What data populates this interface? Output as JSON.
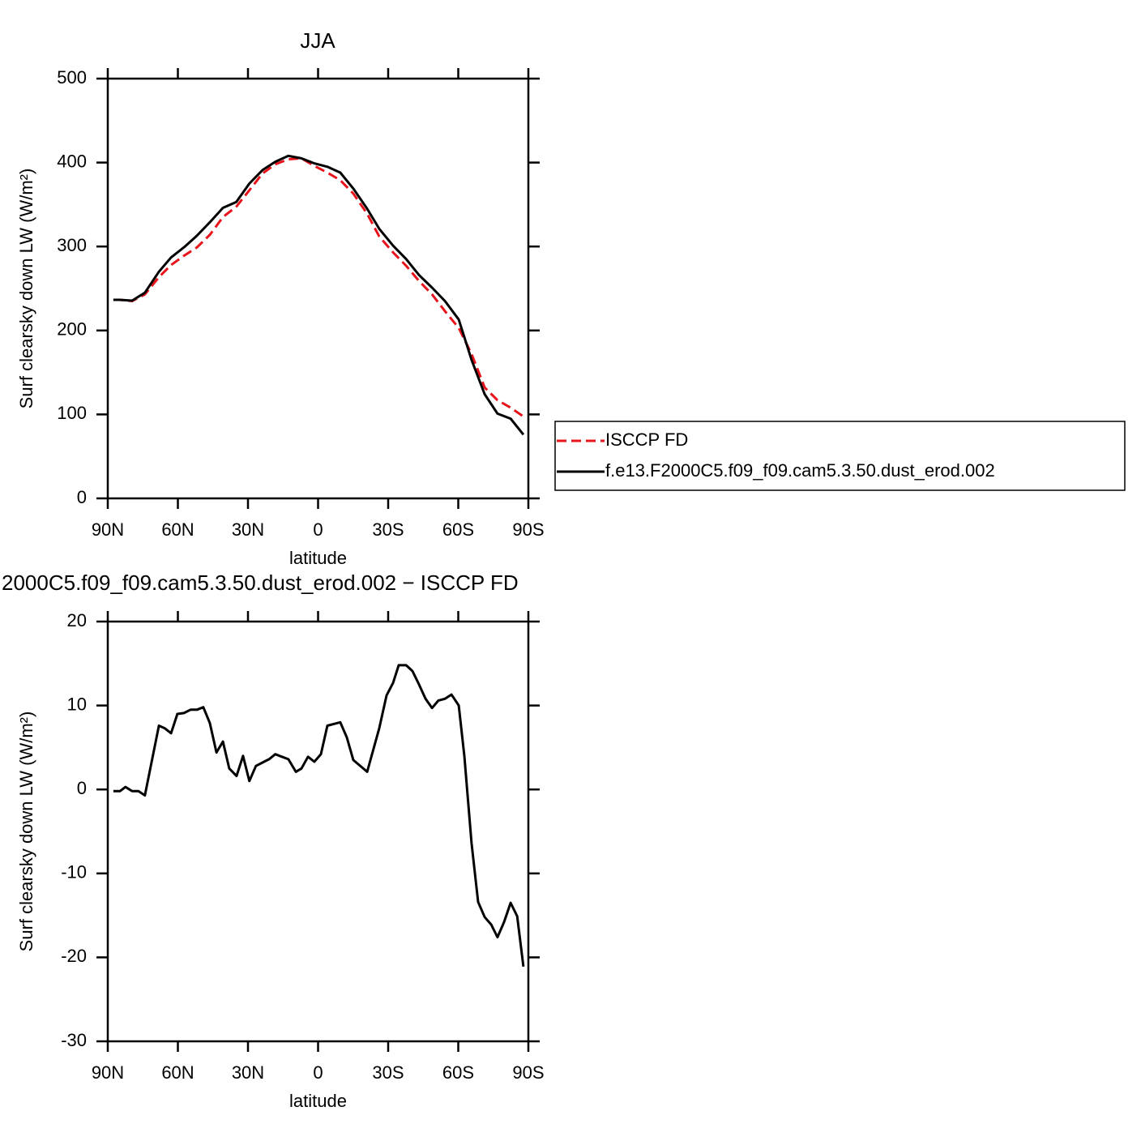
{
  "chart_data": [
    {
      "type": "line",
      "title": "JJA",
      "xlabel": "latitude",
      "ylabel": "Surf clearsky down LW (W/m²)",
      "x": [
        87.6,
        84.8,
        79.6,
        74.1,
        68.1,
        62.9,
        57.4,
        51.8,
        46.3,
        40.7,
        35.0,
        29.4,
        23.8,
        18.3,
        12.7,
        7.1,
        1.6,
        -4.0,
        -9.5,
        -15.1,
        -21.0,
        -26.2,
        -32.1,
        -37.7,
        -43.2,
        -48.8,
        -54.3,
        -60.2,
        -65.7,
        -71.3,
        -76.8,
        -82.4,
        -87.9
      ],
      "series": [
        {
          "name": "ISCCP FD",
          "color": "#e8141c",
          "dash": "dashed",
          "values": [
            236.5,
            236.5,
            235,
            243,
            263.5,
            278,
            289,
            299,
            314,
            335,
            347.5,
            367,
            387,
            398,
            404,
            405,
            396,
            388,
            379,
            363,
            339,
            312,
            293,
            277,
            259,
            243,
            223,
            203,
            172,
            132,
            117,
            108,
            97.5
          ]
        },
        {
          "name": "f.e13.F2000C5.f09_f09.cam5.3.50.dust_erod.002",
          "color": "#000000",
          "dash": "solid",
          "values": [
            236.5,
            236.5,
            235.5,
            245,
            270,
            287,
            299,
            313,
            329,
            346,
            353,
            375,
            391,
            401,
            408,
            405,
            399,
            395,
            388,
            369,
            345,
            321,
            301,
            285,
            266,
            251,
            235,
            213,
            165,
            124,
            101,
            95,
            76
          ]
        }
      ],
      "xlim": [
        90,
        -90
      ],
      "xticks": [
        {
          "value": 90,
          "label": "90N"
        },
        {
          "value": 60,
          "label": "60N"
        },
        {
          "value": 30,
          "label": "30N"
        },
        0,
        {
          "value": -30,
          "label": "30S"
        },
        {
          "value": -60,
          "label": "60S"
        },
        {
          "value": -90,
          "label": "90S"
        }
      ],
      "ylim": [
        0,
        500
      ],
      "yticks": [
        0,
        100,
        200,
        300,
        400,
        500
      ],
      "legend": "right"
    },
    {
      "type": "line",
      "title": "2000C5.f09_f09.cam5.3.50.dust_erod.002 − ISCCP FD",
      "xlabel": "latitude",
      "ylabel": "Surf clearsky down LW (W/m²)",
      "x": [
        87.6,
        84.8,
        82.4,
        79.6,
        76.9,
        74.1,
        68.1,
        65.7,
        62.9,
        60.2,
        57.4,
        54.6,
        51.8,
        49.1,
        46.3,
        43.5,
        40.7,
        38.0,
        34.9,
        32.1,
        29.4,
        26.6,
        23.8,
        21.0,
        18.3,
        15.5,
        12.7,
        9.5,
        7.1,
        4.3,
        1.6,
        -1.2,
        -4.0,
        -6.7,
        -9.5,
        -12.3,
        -15.1,
        -21.0,
        -26.2,
        -29.3,
        -32.1,
        -34.5,
        -37.7,
        -40.4,
        -43.2,
        -46.0,
        -48.8,
        -51.5,
        -54.3,
        -57.1,
        -60.2,
        -62.6,
        -65.7,
        -68.5,
        -71.3,
        -74.1,
        -76.8,
        -79.6,
        -82.4,
        -85.2,
        -87.9
      ],
      "series": [
        {
          "color": "#000000",
          "dash": "solid",
          "values": [
            -0.2,
            -0.2,
            0.3,
            -0.2,
            -0.2,
            -0.7,
            7.6,
            7.3,
            6.7,
            9.0,
            9.1,
            9.5,
            9.5,
            9.8,
            7.9,
            4.4,
            5.7,
            2.5,
            1.6,
            4.0,
            1.0,
            2.8,
            3.2,
            3.6,
            4.2,
            3.9,
            3.6,
            2.1,
            2.5,
            3.9,
            3.3,
            4.2,
            7.6,
            7.8,
            8.0,
            6.2,
            3.5,
            2.1,
            7.3,
            11.2,
            12.7,
            14.8,
            14.8,
            14.1,
            12.5,
            10.8,
            9.7,
            10.6,
            10.8,
            11.3,
            10.0,
            4.0,
            -6.4,
            -13.4,
            -15.2,
            -16.1,
            -17.6,
            -15.8,
            -13.5,
            -15.1,
            -21.1
          ]
        }
      ],
      "xlim": [
        90,
        -90
      ],
      "xticks": [
        {
          "value": 90,
          "label": "90N"
        },
        {
          "value": 60,
          "label": "60N"
        },
        {
          "value": 30,
          "label": "30N"
        },
        0,
        {
          "value": -30,
          "label": "30S"
        },
        {
          "value": -60,
          "label": "60S"
        },
        {
          "value": -90,
          "label": "90S"
        }
      ],
      "ylim": [
        -30,
        20
      ],
      "yticks": [
        -30,
        -20,
        -10,
        0,
        10,
        20
      ]
    }
  ]
}
